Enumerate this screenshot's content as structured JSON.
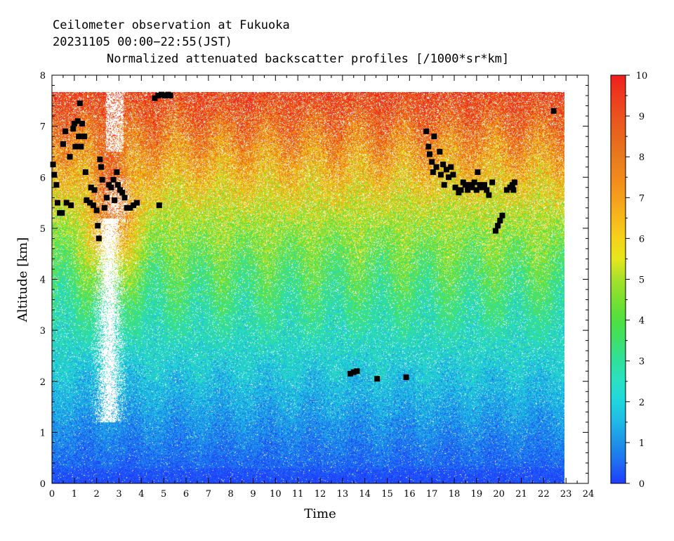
{
  "chart_data": {
    "type": "heatmap",
    "title_lines": [
      "Ceilometer observation at Fukuoka",
      "20231105  00:00−22:55(JST)",
      "Normalized attenuated backscatter profiles [/1000*sr*km]"
    ],
    "xlabel": "Time",
    "ylabel": "Altitude [km]",
    "xlim": [
      0,
      24
    ],
    "ylim": [
      0,
      8
    ],
    "x_ticks": [
      "0",
      "1",
      "2",
      "3",
      "4",
      "5",
      "6",
      "7",
      "8",
      "9",
      "10",
      "11",
      "12",
      "13",
      "14",
      "15",
      "16",
      "17",
      "18",
      "19",
      "20",
      "21",
      "22",
      "23",
      "24"
    ],
    "y_ticks": [
      "0",
      "1",
      "2",
      "3",
      "4",
      "5",
      "6",
      "7",
      "8"
    ],
    "data_extent": {
      "time_end": 22.92,
      "alt_top": 7.67
    },
    "colorbar": {
      "range": [
        0,
        10
      ],
      "ticks": [
        "0",
        "1",
        "2",
        "3",
        "4",
        "5",
        "6",
        "7",
        "8",
        "9",
        "10"
      ],
      "colors": [
        [
          0.0,
          "#1f3cff"
        ],
        [
          0.5,
          "#1f6cf0"
        ],
        [
          1.0,
          "#1e93e6"
        ],
        [
          1.5,
          "#1fb8e6"
        ],
        [
          2.0,
          "#1fd6de"
        ],
        [
          2.5,
          "#2ae0c4"
        ],
        [
          3.0,
          "#2fe09b"
        ],
        [
          3.5,
          "#3fe06a"
        ],
        [
          4.0,
          "#4fe040"
        ],
        [
          4.5,
          "#7ae030"
        ],
        [
          5.0,
          "#a6e02c"
        ],
        [
          5.5,
          "#e6e61c"
        ],
        [
          6.0,
          "#f5d21a"
        ],
        [
          6.5,
          "#f7b81a"
        ],
        [
          7.0,
          "#f59e1c"
        ],
        [
          7.5,
          "#f08a1c"
        ],
        [
          8.0,
          "#e87a1e"
        ],
        [
          8.5,
          "#e8661e"
        ],
        [
          9.0,
          "#ea521e"
        ],
        [
          9.5,
          "#ee3a1e"
        ],
        [
          10.0,
          "#f01e1e"
        ]
      ]
    },
    "cloud_points": [
      {
        "t": 0.05,
        "h": 6.25
      },
      {
        "t": 0.1,
        "h": 6.05
      },
      {
        "t": 0.2,
        "h": 5.85
      },
      {
        "t": 0.25,
        "h": 5.5
      },
      {
        "t": 0.35,
        "h": 5.3
      },
      {
        "t": 0.45,
        "h": 5.3
      },
      {
        "t": 0.5,
        "h": 6.65
      },
      {
        "t": 0.6,
        "h": 6.9
      },
      {
        "t": 0.65,
        "h": 5.5
      },
      {
        "t": 0.8,
        "h": 6.4
      },
      {
        "t": 0.85,
        "h": 5.45
      },
      {
        "t": 0.95,
        "h": 6.95
      },
      {
        "t": 1.0,
        "h": 7.05
      },
      {
        "t": 1.05,
        "h": 6.6
      },
      {
        "t": 1.15,
        "h": 7.1
      },
      {
        "t": 1.2,
        "h": 6.8
      },
      {
        "t": 1.25,
        "h": 7.45
      },
      {
        "t": 1.3,
        "h": 6.6
      },
      {
        "t": 1.35,
        "h": 7.05
      },
      {
        "t": 1.45,
        "h": 6.8
      },
      {
        "t": 1.5,
        "h": 6.1
      },
      {
        "t": 1.55,
        "h": 5.55
      },
      {
        "t": 1.7,
        "h": 5.5
      },
      {
        "t": 1.75,
        "h": 5.8
      },
      {
        "t": 1.85,
        "h": 5.45
      },
      {
        "t": 1.9,
        "h": 5.75
      },
      {
        "t": 2.0,
        "h": 5.35
      },
      {
        "t": 2.05,
        "h": 5.05
      },
      {
        "t": 2.1,
        "h": 4.8
      },
      {
        "t": 2.15,
        "h": 6.35
      },
      {
        "t": 2.2,
        "h": 6.2
      },
      {
        "t": 2.25,
        "h": 5.95
      },
      {
        "t": 2.35,
        "h": 5.4
      },
      {
        "t": 2.45,
        "h": 5.6
      },
      {
        "t": 2.55,
        "h": 5.85
      },
      {
        "t": 2.65,
        "h": 5.8
      },
      {
        "t": 2.75,
        "h": 5.95
      },
      {
        "t": 2.8,
        "h": 5.55
      },
      {
        "t": 2.9,
        "h": 6.1
      },
      {
        "t": 2.95,
        "h": 5.85
      },
      {
        "t": 3.05,
        "h": 5.75
      },
      {
        "t": 3.15,
        "h": 5.7
      },
      {
        "t": 3.25,
        "h": 5.6
      },
      {
        "t": 3.35,
        "h": 5.4
      },
      {
        "t": 3.5,
        "h": 5.4
      },
      {
        "t": 3.65,
        "h": 5.45
      },
      {
        "t": 3.8,
        "h": 5.5
      },
      {
        "t": 4.8,
        "h": 5.45
      },
      {
        "t": 4.6,
        "h": 7.55
      },
      {
        "t": 4.75,
        "h": 7.6
      },
      {
        "t": 4.9,
        "h": 7.62
      },
      {
        "t": 5.05,
        "h": 7.6
      },
      {
        "t": 5.2,
        "h": 7.62
      },
      {
        "t": 5.3,
        "h": 7.6
      },
      {
        "t": 13.35,
        "h": 2.15
      },
      {
        "t": 13.5,
        "h": 2.18
      },
      {
        "t": 13.65,
        "h": 2.2
      },
      {
        "t": 14.55,
        "h": 2.05
      },
      {
        "t": 15.85,
        "h": 2.08
      },
      {
        "t": 16.75,
        "h": 6.9
      },
      {
        "t": 16.85,
        "h": 6.6
      },
      {
        "t": 16.9,
        "h": 6.45
      },
      {
        "t": 17.0,
        "h": 6.3
      },
      {
        "t": 17.05,
        "h": 6.1
      },
      {
        "t": 17.1,
        "h": 6.8
      },
      {
        "t": 17.2,
        "h": 6.2
      },
      {
        "t": 17.35,
        "h": 6.5
      },
      {
        "t": 17.4,
        "h": 6.05
      },
      {
        "t": 17.5,
        "h": 6.25
      },
      {
        "t": 17.55,
        "h": 5.85
      },
      {
        "t": 17.65,
        "h": 6.15
      },
      {
        "t": 17.75,
        "h": 6.0
      },
      {
        "t": 17.85,
        "h": 6.2
      },
      {
        "t": 17.95,
        "h": 6.05
      },
      {
        "t": 18.05,
        "h": 5.8
      },
      {
        "t": 18.2,
        "h": 5.7
      },
      {
        "t": 18.3,
        "h": 5.75
      },
      {
        "t": 18.4,
        "h": 5.9
      },
      {
        "t": 18.5,
        "h": 5.85
      },
      {
        "t": 18.6,
        "h": 5.75
      },
      {
        "t": 18.7,
        "h": 5.85
      },
      {
        "t": 18.8,
        "h": 5.8
      },
      {
        "t": 18.9,
        "h": 5.9
      },
      {
        "t": 19.0,
        "h": 5.75
      },
      {
        "t": 19.05,
        "h": 6.1
      },
      {
        "t": 19.15,
        "h": 5.85
      },
      {
        "t": 19.25,
        "h": 5.8
      },
      {
        "t": 19.35,
        "h": 5.85
      },
      {
        "t": 19.45,
        "h": 5.75
      },
      {
        "t": 19.55,
        "h": 5.65
      },
      {
        "t": 19.7,
        "h": 5.9
      },
      {
        "t": 19.85,
        "h": 4.95
      },
      {
        "t": 19.95,
        "h": 5.05
      },
      {
        "t": 20.05,
        "h": 5.15
      },
      {
        "t": 20.15,
        "h": 5.25
      },
      {
        "t": 20.35,
        "h": 5.75
      },
      {
        "t": 20.5,
        "h": 5.8
      },
      {
        "t": 20.6,
        "h": 5.85
      },
      {
        "t": 20.65,
        "h": 5.75
      },
      {
        "t": 20.7,
        "h": 5.9
      },
      {
        "t": 22.45,
        "h": 7.3
      }
    ],
    "grid": false,
    "legend": "colorbar-right"
  }
}
